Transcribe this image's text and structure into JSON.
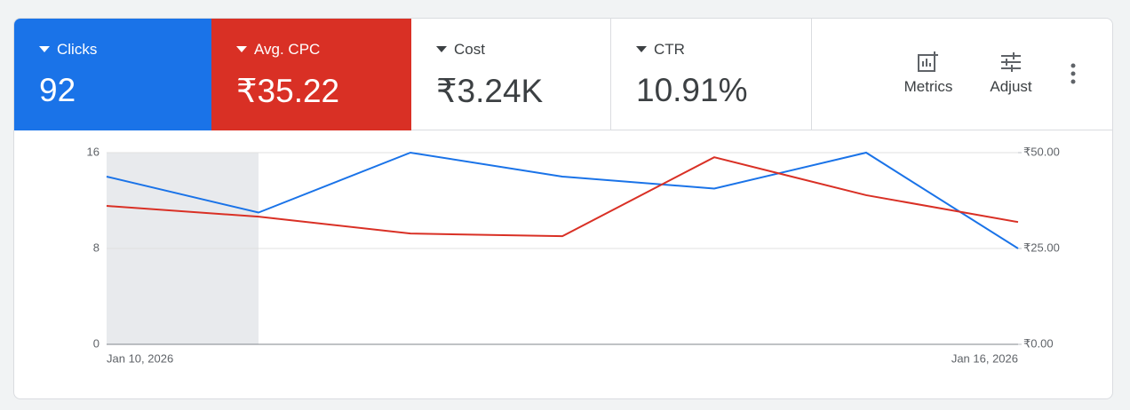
{
  "scorecards": [
    {
      "label": "Clicks",
      "value": "92"
    },
    {
      "label": "Avg. CPC",
      "value": "₹35.22"
    },
    {
      "label": "Cost",
      "value": "₹3.24K"
    },
    {
      "label": "CTR",
      "value": "10.91%"
    }
  ],
  "buttons": [
    "Metrics",
    "Adjust"
  ],
  "chart_data": {
    "type": "line",
    "categories": [
      "Jan 10, 2026",
      null,
      null,
      null,
      null,
      null,
      "Jan 16, 2026"
    ],
    "series": [
      {
        "color": "#1a73e8",
        "values": [
          14,
          11,
          16,
          14,
          13,
          16,
          8
        ]
      },
      {
        "color": "#d93025",
        "axis": "y2",
        "values": [
          36.1,
          33.3,
          28.9,
          28.2,
          48.8,
          38.9,
          31.9
        ]
      }
    ],
    "ylim": [
      0,
      16
    ],
    "yticks": [
      0,
      8,
      16
    ],
    "y2lim": [
      0,
      50
    ],
    "y2ticks": [
      {
        "value": 0,
        "label": "₹0.00"
      },
      {
        "value": 25,
        "label": "₹25.00"
      },
      {
        "value": 50,
        "label": "₹50.00"
      }
    ],
    "grid": true
  }
}
